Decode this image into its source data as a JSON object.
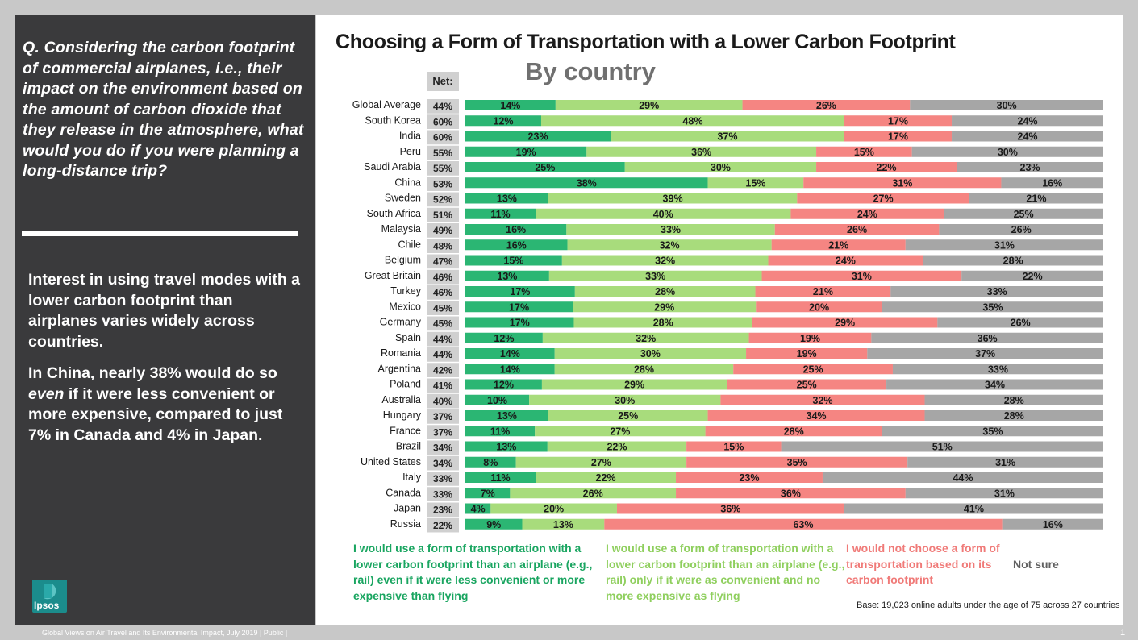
{
  "sidebar": {
    "question": "Q. Considering the carbon footprint of commercial airplanes, i.e., their impact on the environment based on the amount of carbon dioxide that they release in the atmosphere, what would you do if you were planning a long-distance trip?",
    "insight_1": "Interest in using travel modes with a lower carbon footprint than airplanes varies widely across countries.",
    "insight_2_before": "In China, nearly 38% would do so ",
    "insight_2_emph": "even",
    "insight_2_after": " if it were less convenient or more expensive, compared to just 7% in Canada and 4% in Japan.",
    "logo_text": "Ipsos"
  },
  "footer": {
    "left": "Global Views on Air Travel and Its Environmental Impact, July 2019 | Public |",
    "page_number": "1"
  },
  "chart_data": {
    "type": "bar",
    "orientation": "horizontal",
    "stacked": true,
    "title": "Choosing a Form of Transportation with a Lower Carbon Footprint",
    "subtitle": "By country",
    "net_label": "Net:",
    "categories": [
      "Global Average",
      "South Korea",
      "India",
      "Peru",
      "Saudi Arabia",
      "China",
      "Sweden",
      "South Africa",
      "Malaysia",
      "Chile",
      "Belgium",
      "Great Britain",
      "Turkey",
      "Mexico",
      "Germany",
      "Spain",
      "Romania",
      "Argentina",
      "Poland",
      "Australia",
      "Hungary",
      "France",
      "Brazil",
      "United States",
      "Italy",
      "Canada",
      "Japan",
      "Russia"
    ],
    "net": [
      "44%",
      "60%",
      "60%",
      "55%",
      "55%",
      "53%",
      "52%",
      "51%",
      "49%",
      "48%",
      "47%",
      "46%",
      "46%",
      "45%",
      "45%",
      "44%",
      "44%",
      "42%",
      "41%",
      "40%",
      "37%",
      "37%",
      "34%",
      "34%",
      "33%",
      "33%",
      "23%",
      "22%"
    ],
    "series": [
      {
        "name": "I would use a form of transportation with a lower carbon footprint than an airplane (e.g., rail) even if it were less convenient or more expensive than flying",
        "color": "#2bb673",
        "label_color": "#1a1a1a",
        "values": [
          14,
          12,
          23,
          19,
          25,
          38,
          13,
          11,
          16,
          16,
          15,
          13,
          17,
          17,
          17,
          12,
          14,
          14,
          12,
          10,
          13,
          11,
          13,
          8,
          11,
          7,
          4,
          9
        ]
      },
      {
        "name": "I would use a form of transportation with a lower carbon footprint than an airplane (e.g., rail) only if it were as convenient and no more expensive as flying",
        "color": "#a8dc7c",
        "label_color": "#1a1a1a",
        "values": [
          29,
          48,
          37,
          36,
          30,
          15,
          39,
          40,
          33,
          32,
          32,
          33,
          28,
          29,
          28,
          32,
          30,
          28,
          29,
          30,
          25,
          27,
          22,
          27,
          22,
          26,
          20,
          13
        ]
      },
      {
        "name": "I would not choose a form of transportation based on its carbon footprint",
        "color": "#f58582",
        "label_color": "#1a1a1a",
        "values": [
          26,
          17,
          17,
          15,
          22,
          31,
          27,
          24,
          26,
          21,
          24,
          31,
          21,
          20,
          29,
          19,
          19,
          25,
          25,
          32,
          34,
          28,
          15,
          35,
          23,
          36,
          36,
          63
        ]
      },
      {
        "name": "Not sure",
        "color": "#a6a6a6",
        "label_color": "#1a1a1a",
        "values": [
          30,
          24,
          24,
          30,
          23,
          16,
          21,
          25,
          26,
          31,
          28,
          22,
          33,
          35,
          26,
          36,
          37,
          33,
          34,
          28,
          28,
          35,
          51,
          31,
          44,
          31,
          41,
          16
        ]
      }
    ],
    "legend": [
      {
        "text": "I would use a form of transportation with a lower carbon footprint than an airplane (e.g., rail) even if it were less convenient or more expensive than flying",
        "color": "#19a560"
      },
      {
        "text": "I would use a form of transportation with a lower carbon footprint than an airplane (e.g., rail) only if it were as convenient and no more expensive as flying",
        "color": "#8fcf5e"
      },
      {
        "text": "I would not choose a form of transportation based on its carbon footprint",
        "color": "#f07a78"
      },
      {
        "text": "Not sure",
        "color": "#606060"
      }
    ],
    "base_note": "Base: 19,023 online adults under the age of 75 across 27 countries",
    "colors": {
      "net_box": "#d0d0d0",
      "row_bg": "#f2f2f2"
    }
  }
}
